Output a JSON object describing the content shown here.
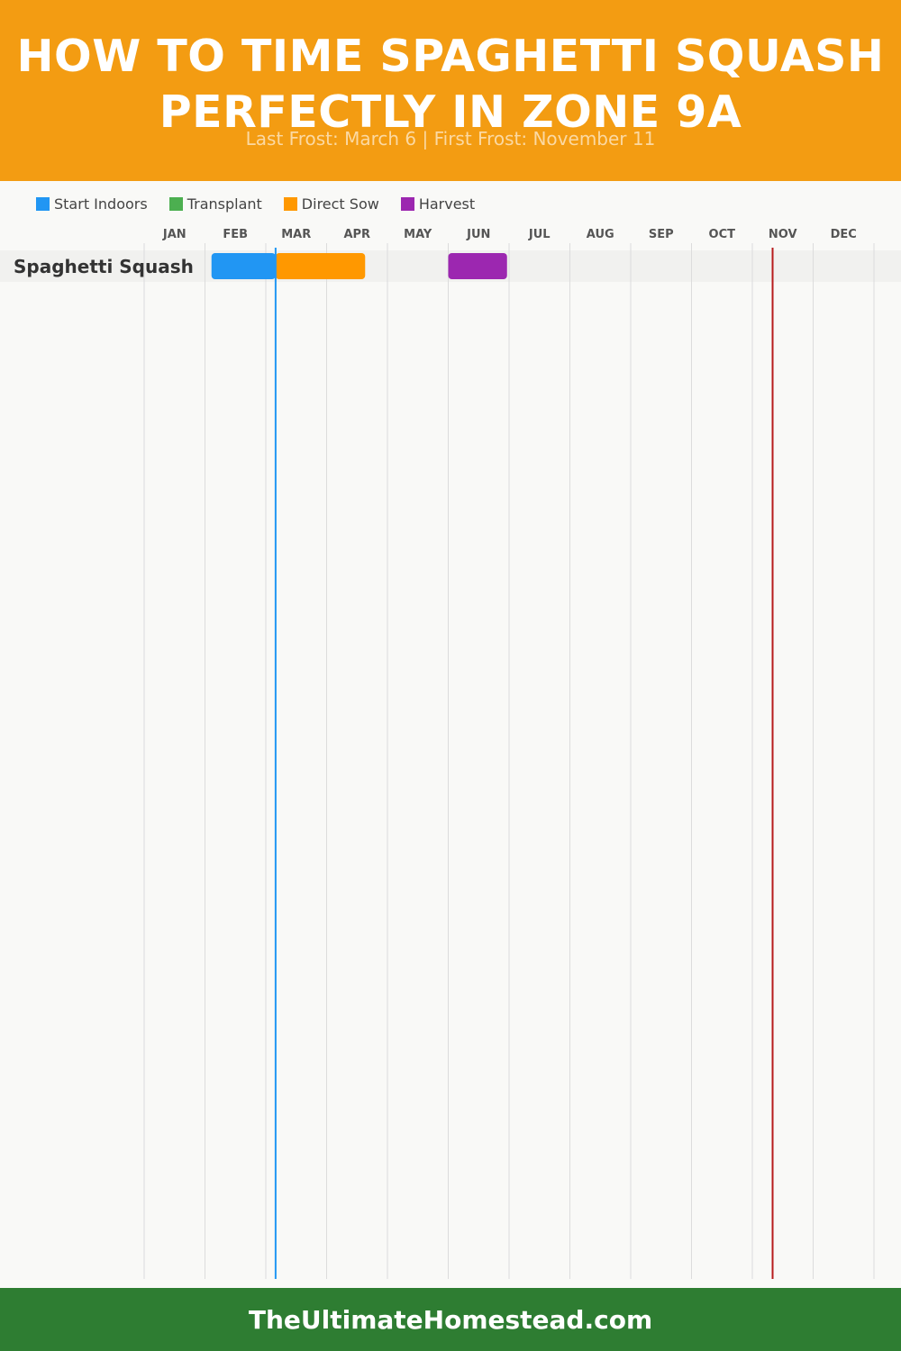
{
  "header": {
    "title": "HOW TO TIME SPAGHETTI SQUASH PERFECTLY IN ZONE 9A",
    "subtitle": "Last Frost: March 6 | First Frost: November 11",
    "background": "#f39c12"
  },
  "legend": [
    {
      "label": "Start Indoors",
      "color": "#2196f3"
    },
    {
      "label": "Transplant",
      "color": "#4caf50"
    },
    {
      "label": "Direct Sow",
      "color": "#ff9800"
    },
    {
      "label": "Harvest",
      "color": "#9c27b0"
    }
  ],
  "chart_data": {
    "type": "gantt",
    "months": [
      "JAN",
      "FEB",
      "MAR",
      "APR",
      "MAY",
      "JUN",
      "JUL",
      "AUG",
      "SEP",
      "OCT",
      "NOV",
      "DEC"
    ],
    "rows": [
      {
        "label": "Spaghetti Squash",
        "bars": [
          {
            "phase": "Start Indoors",
            "start": "Feb 4",
            "end": "Mar 6",
            "color": "#2196f3"
          },
          {
            "phase": "Direct Sow",
            "start": "Mar 6",
            "end": "Apr 20",
            "color": "#ff9800"
          },
          {
            "phase": "Harvest",
            "start": "Jun 1",
            "end": "Jun 30",
            "color": "#9c27b0"
          }
        ]
      }
    ],
    "frost_lines": [
      {
        "name": "Last Frost",
        "date": "Mar 6",
        "color": "#2196f3"
      },
      {
        "name": "First Frost",
        "date": "Nov 11",
        "color": "#b71c1c"
      }
    ],
    "grid": true
  },
  "footer": {
    "text": "TheUltimateHomestead.com",
    "background": "#2e7d32"
  }
}
